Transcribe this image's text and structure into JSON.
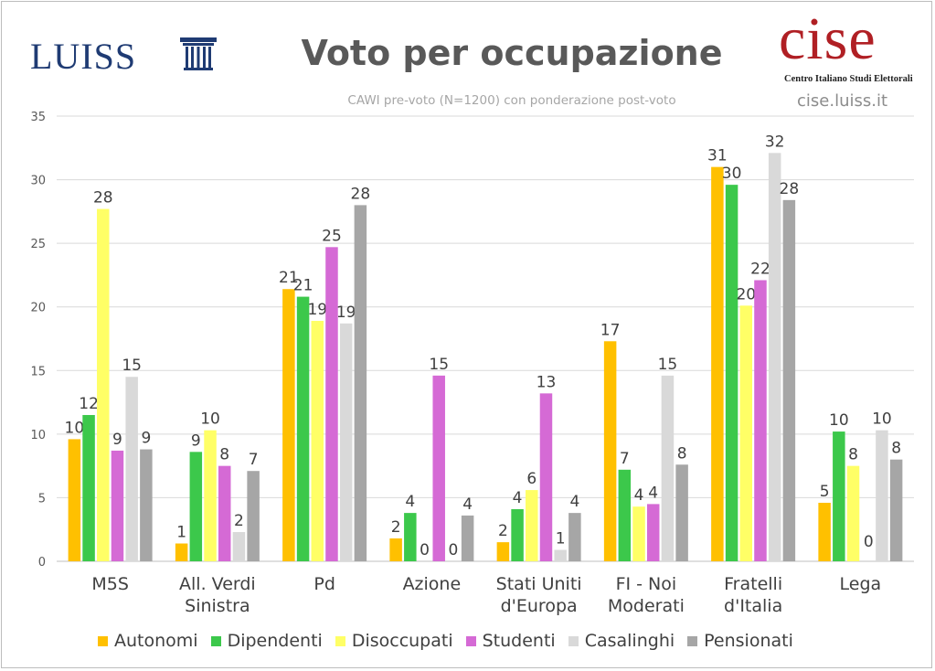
{
  "header": {
    "luiss_logo": "LUISS",
    "title": "Voto per occupazione",
    "subtitle": "CAWI pre-voto (N=1200) con ponderazione post-voto",
    "cise_logo": "cise",
    "cise_subtitle": "Centro Italiano Studi Elettorali",
    "cise_url": "cise.luiss.it"
  },
  "chart_data": {
    "type": "bar",
    "title": "Voto per occupazione",
    "subtitle": "CAWI pre-voto (N=1200) con ponderazione post-voto",
    "categories": [
      [
        "M5S"
      ],
      [
        "All. Verdi",
        "Sinistra"
      ],
      [
        "Pd"
      ],
      [
        "Azione"
      ],
      [
        "Stati Uniti",
        "d'Europa"
      ],
      [
        "FI - Noi",
        "Moderati"
      ],
      [
        "Fratelli",
        "d'Italia"
      ],
      [
        "Lega"
      ]
    ],
    "ylim": [
      0,
      35
    ],
    "yticks": [
      0,
      5,
      10,
      15,
      20,
      25,
      30,
      35
    ],
    "grid": true,
    "legend_position": "bottom",
    "series": [
      {
        "name": "Autonomi",
        "color": "#ffc000",
        "values": [
          9.6,
          1.4,
          21.4,
          1.8,
          1.5,
          17.3,
          31.0,
          4.6
        ],
        "labels": [
          "10",
          "1",
          "21",
          "2",
          "2",
          "17",
          "31",
          "5"
        ]
      },
      {
        "name": "Dipendenti",
        "color": "#3cc84b",
        "values": [
          11.5,
          8.6,
          20.8,
          3.8,
          4.1,
          7.2,
          29.6,
          10.2
        ],
        "labels": [
          "12",
          "9",
          "21",
          "4",
          "4",
          "7",
          "30",
          "10"
        ]
      },
      {
        "name": "Disoccupati",
        "color": "#ffff66",
        "values": [
          27.7,
          10.3,
          18.9,
          0.0,
          5.6,
          4.3,
          20.1,
          7.5
        ],
        "labels": [
          "28",
          "10",
          "19",
          "0",
          "6",
          "4",
          "20",
          "8"
        ]
      },
      {
        "name": "Studenti",
        "color": "#d56ad5",
        "values": [
          8.7,
          7.5,
          24.7,
          14.6,
          13.2,
          4.5,
          22.1,
          0.0
        ],
        "labels": [
          "9",
          "8",
          "25",
          "15",
          "13",
          "4",
          "22",
          ""
        ]
      },
      {
        "name": "Casalinghi",
        "color": "#d9d9d9",
        "values": [
          14.5,
          2.3,
          18.7,
          0.0,
          0.9,
          14.6,
          32.1,
          10.3
        ],
        "labels": [
          "15",
          "2",
          "19",
          "0",
          "1",
          "15",
          "32",
          "10"
        ]
      },
      {
        "name": "Pensionati",
        "color": "#a6a6a6",
        "values": [
          8.8,
          7.1,
          28.0,
          3.6,
          3.8,
          7.6,
          28.4,
          8.0
        ],
        "labels": [
          "9",
          "7",
          "28",
          "4",
          "4",
          "8",
          "28",
          "8"
        ]
      }
    ],
    "extra_labels": [
      {
        "category_index": 7,
        "text": "0"
      }
    ]
  }
}
